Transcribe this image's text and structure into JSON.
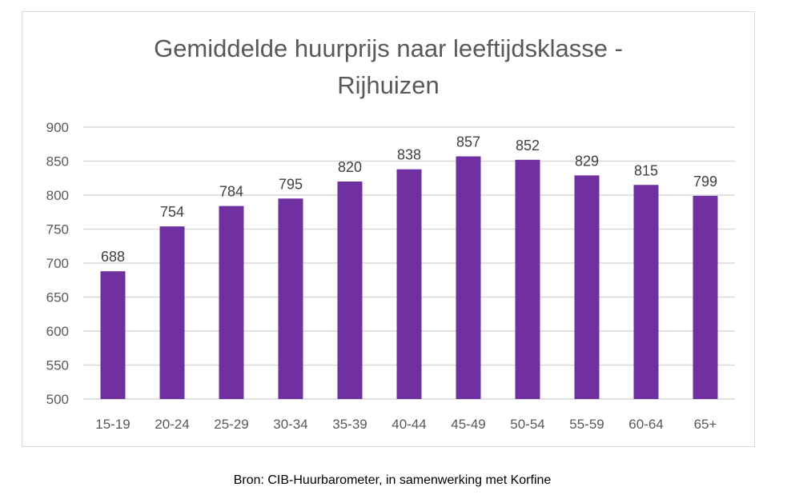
{
  "chart_data": {
    "type": "bar",
    "title_line1": "Gemiddelde huurprijs naar leeftijdsklasse -",
    "title_line2": "Rijhuizen",
    "categories": [
      "15-19",
      "20-24",
      "25-29",
      "30-34",
      "35-39",
      "40-44",
      "45-49",
      "50-54",
      "55-59",
      "60-64",
      "65+"
    ],
    "values": [
      688,
      754,
      784,
      795,
      820,
      838,
      857,
      852,
      829,
      815,
      799
    ],
    "ylim": [
      500,
      900
    ],
    "yticks": [
      500,
      550,
      600,
      650,
      700,
      750,
      800,
      850,
      900
    ],
    "xlabel": "",
    "ylabel": "",
    "grid": true,
    "legend": "none",
    "bar_color": "#7030A0",
    "grid_color": "#d9d9d9"
  },
  "caption": "Bron: CIB-Huurbarometer, in samenwerking met Korfine"
}
